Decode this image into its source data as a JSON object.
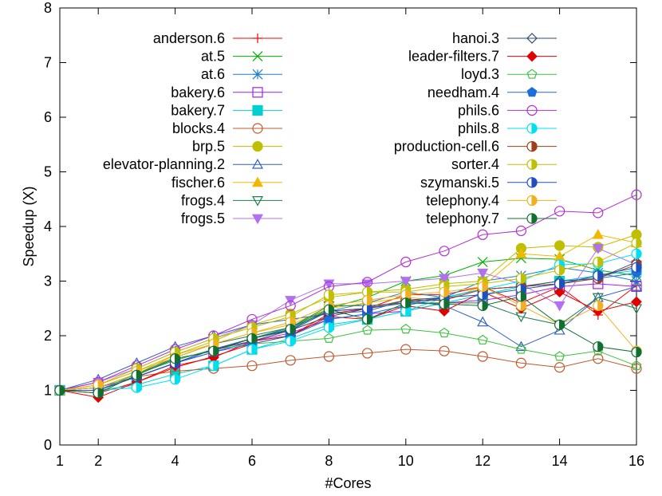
{
  "chart_data": {
    "type": "line",
    "title": "",
    "xlabel": "#Cores",
    "ylabel": "Speedup (X)",
    "xlim": [
      1,
      16
    ],
    "ylim": [
      0,
      8
    ],
    "xticks": [
      1,
      2,
      4,
      6,
      8,
      10,
      12,
      14,
      16
    ],
    "yticks": [
      0,
      1,
      2,
      3,
      4,
      5,
      6,
      7,
      8
    ],
    "grid": false,
    "legend_position": "inside-top",
    "x": [
      1,
      2,
      3,
      4,
      5,
      6,
      7,
      8,
      9,
      10,
      11,
      12,
      13,
      14,
      15,
      16
    ],
    "series": [
      {
        "name": "anderson.6",
        "color": "#ff0000",
        "marker": "plus",
        "values": [
          1.0,
          0.95,
          1.15,
          1.42,
          1.62,
          1.85,
          2.0,
          2.4,
          2.5,
          2.75,
          2.75,
          2.9,
          2.6,
          2.9,
          2.38,
          2.92
        ]
      },
      {
        "name": "at.5",
        "color": "#00b000",
        "marker": "x",
        "values": [
          1.0,
          1.05,
          1.3,
          1.55,
          1.75,
          1.95,
          2.15,
          2.5,
          2.7,
          3.0,
          3.1,
          3.35,
          3.42,
          3.4,
          3.2,
          3.1
        ]
      },
      {
        "name": "at.6",
        "color": "#1f7fc8",
        "marker": "star",
        "values": [
          1.0,
          1.05,
          1.3,
          1.55,
          1.75,
          1.95,
          2.15,
          2.45,
          2.6,
          2.8,
          2.7,
          3.0,
          3.1,
          3.25,
          3.15,
          3.0
        ]
      },
      {
        "name": "bakery.6",
        "color": "#a020f0",
        "marker": "square-open",
        "values": [
          1.0,
          1.05,
          1.25,
          1.5,
          1.7,
          1.9,
          2.05,
          2.3,
          2.4,
          2.45,
          2.6,
          2.65,
          2.75,
          2.9,
          2.95,
          2.9
        ]
      },
      {
        "name": "bakery.7",
        "color": "#00d0d0",
        "marker": "square-filled",
        "values": [
          1.0,
          1.0,
          1.1,
          1.3,
          1.45,
          1.75,
          1.95,
          2.2,
          2.3,
          2.45,
          2.6,
          2.75,
          2.9,
          3.0,
          3.1,
          3.2
        ]
      },
      {
        "name": "blocks.4",
        "color": "#c0582c",
        "marker": "circle-open",
        "values": [
          1.0,
          1.0,
          1.25,
          1.35,
          1.4,
          1.45,
          1.55,
          1.62,
          1.68,
          1.75,
          1.72,
          1.62,
          1.5,
          1.42,
          1.58,
          1.4
        ]
      },
      {
        "name": "brp.5",
        "color": "#bfbf00",
        "marker": "circle-filled",
        "values": [
          1.0,
          1.1,
          1.35,
          1.65,
          1.9,
          2.2,
          2.4,
          2.7,
          2.8,
          2.85,
          2.95,
          3.0,
          3.6,
          3.65,
          3.62,
          3.85
        ]
      },
      {
        "name": "elevator-planning.2",
        "color": "#3060c0",
        "marker": "triangle-open",
        "values": [
          1.0,
          1.2,
          1.5,
          1.8,
          2.0,
          2.2,
          2.3,
          2.4,
          2.45,
          2.65,
          2.55,
          2.25,
          1.8,
          2.1,
          2.7,
          2.9
        ]
      },
      {
        "name": "fischer.6",
        "color": "#f0b800",
        "marker": "triangle-filled",
        "values": [
          1.0,
          1.05,
          1.3,
          1.65,
          1.85,
          2.05,
          2.2,
          2.5,
          2.6,
          2.7,
          2.65,
          2.9,
          3.5,
          3.45,
          3.85,
          3.7
        ]
      },
      {
        "name": "frogs.4",
        "color": "#208050",
        "marker": "triangle-down-open",
        "values": [
          1.0,
          1.0,
          1.3,
          1.6,
          1.85,
          2.0,
          2.15,
          2.55,
          2.55,
          2.6,
          2.6,
          2.6,
          2.35,
          2.2,
          2.7,
          2.5
        ]
      },
      {
        "name": "frogs.5",
        "color": "#b070f0",
        "marker": "triangle-down-filled",
        "values": [
          1.0,
          1.15,
          1.4,
          1.7,
          1.95,
          2.2,
          2.65,
          2.95,
          2.95,
          3.0,
          3.05,
          3.15,
          2.95,
          2.55,
          3.6,
          3.3
        ]
      },
      {
        "name": "hanoi.3",
        "color": "#2f4f6f",
        "marker": "diamond-open",
        "values": [
          1.0,
          1.0,
          1.25,
          1.5,
          1.75,
          1.9,
          2.1,
          2.35,
          2.5,
          2.65,
          2.7,
          2.85,
          2.9,
          3.0,
          3.05,
          3.35
        ]
      },
      {
        "name": "leader-filters.7",
        "color": "#e00000",
        "marker": "diamond-filled",
        "values": [
          1.0,
          0.87,
          1.15,
          1.45,
          1.6,
          1.9,
          2.0,
          2.35,
          2.3,
          2.55,
          2.45,
          2.8,
          2.5,
          2.8,
          2.45,
          2.62
        ]
      },
      {
        "name": "loyd.3",
        "color": "#40c040",
        "marker": "pentagon-open",
        "values": [
          1.0,
          1.0,
          1.3,
          1.55,
          1.75,
          1.85,
          1.9,
          1.95,
          2.1,
          2.12,
          2.05,
          1.92,
          1.75,
          1.62,
          1.72,
          1.45
        ]
      },
      {
        "name": "needham.4",
        "color": "#1a6fdc",
        "marker": "pentagon-filled",
        "values": [
          1.0,
          1.0,
          1.25,
          1.5,
          1.7,
          1.85,
          2.0,
          2.3,
          2.4,
          2.55,
          2.7,
          2.85,
          2.9,
          2.95,
          3.05,
          3.15
        ]
      },
      {
        "name": "phils.6",
        "color": "#b030d0",
        "marker": "circle-open",
        "values": [
          1.0,
          1.15,
          1.45,
          1.75,
          2.0,
          2.3,
          2.55,
          2.9,
          2.98,
          3.35,
          3.55,
          3.85,
          3.92,
          4.28,
          4.25,
          4.58
        ]
      },
      {
        "name": "phils.8",
        "color": "#00e0f0",
        "marker": "circle-half",
        "values": [
          1.0,
          1.0,
          1.05,
          1.2,
          1.45,
          1.75,
          1.9,
          2.15,
          2.3,
          2.45,
          2.7,
          2.85,
          3.0,
          3.3,
          3.32,
          3.5
        ]
      },
      {
        "name": "production-cell.6",
        "color": "#a0401a",
        "marker": "circle-half",
        "values": [
          1.0,
          1.0,
          1.25,
          1.5,
          1.75,
          1.95,
          2.1,
          2.45,
          2.5,
          2.65,
          2.65,
          2.85,
          2.9,
          2.95,
          3.05,
          3.3
        ]
      },
      {
        "name": "sorter.4",
        "color": "#c0c000",
        "marker": "circle-half",
        "values": [
          1.0,
          1.1,
          1.4,
          1.7,
          1.95,
          2.15,
          2.35,
          2.75,
          2.8,
          2.8,
          2.9,
          2.95,
          3.05,
          3.2,
          3.35,
          3.7
        ]
      },
      {
        "name": "szymanski.5",
        "color": "#2050c0",
        "marker": "circle-half",
        "values": [
          1.0,
          1.0,
          1.25,
          1.5,
          1.75,
          1.95,
          2.1,
          2.45,
          2.5,
          2.6,
          2.7,
          2.75,
          2.85,
          2.95,
          3.1,
          3.25
        ]
      },
      {
        "name": "telephony.4",
        "color": "#f0b020",
        "marker": "circle-half",
        "values": [
          1.0,
          1.1,
          1.35,
          1.6,
          1.85,
          2.05,
          2.25,
          2.55,
          2.65,
          2.75,
          2.8,
          2.9,
          2.55,
          2.2,
          2.55,
          1.72
        ]
      },
      {
        "name": "telephony.7",
        "color": "#107030",
        "marker": "circle-half",
        "values": [
          1.0,
          0.95,
          1.28,
          1.58,
          1.72,
          1.95,
          2.12,
          2.48,
          2.3,
          2.6,
          2.58,
          2.55,
          2.72,
          2.2,
          1.8,
          1.7
        ]
      }
    ]
  }
}
